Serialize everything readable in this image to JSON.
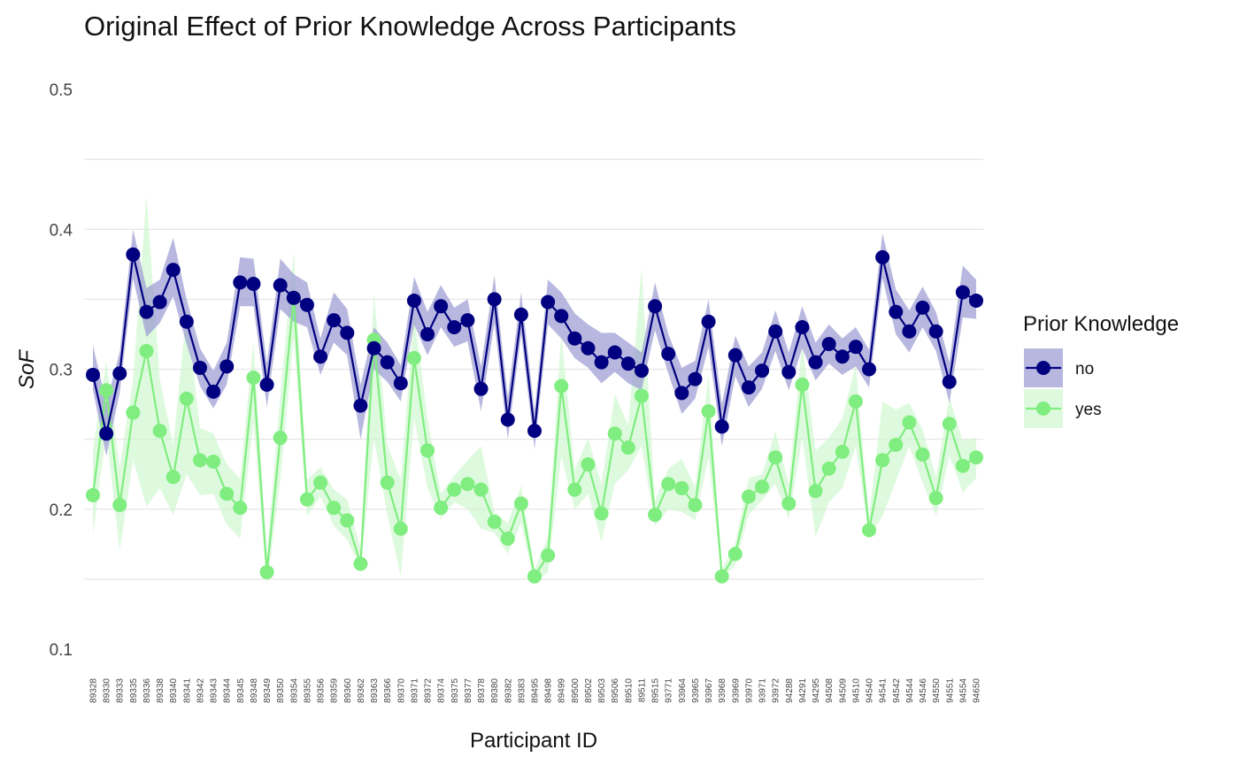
{
  "chart_data": {
    "type": "line",
    "title": "Original Effect of Prior Knowledge Across Participants",
    "xlabel": "Participant ID",
    "ylabel": "SoF",
    "ylim": [
      0.1,
      0.5
    ],
    "yticks": [
      "0.1",
      "0.2",
      "0.3",
      "0.4",
      "0.5"
    ],
    "grid": true,
    "legend": {
      "title": "Prior Knowledge",
      "position": "right"
    },
    "categories": [
      "89328",
      "89330",
      "89333",
      "89335",
      "89336",
      "89338",
      "89340",
      "89341",
      "89342",
      "89343",
      "89344",
      "89345",
      "89348",
      "89349",
      "89350",
      "89354",
      "89355",
      "89356",
      "89359",
      "89360",
      "89362",
      "89363",
      "89366",
      "89370",
      "89371",
      "89372",
      "89374",
      "89375",
      "89377",
      "89378",
      "89380",
      "89382",
      "89383",
      "89495",
      "89498",
      "89499",
      "89500",
      "89502",
      "89503",
      "89506",
      "89510",
      "89511",
      "89515",
      "93771",
      "93964",
      "93965",
      "93967",
      "93968",
      "93969",
      "93970",
      "93971",
      "93972",
      "94288",
      "94291",
      "94295",
      "94508",
      "94509",
      "94510",
      "94540",
      "94541",
      "94542",
      "94544",
      "94546",
      "94550",
      "94551",
      "94554",
      "94650"
    ],
    "series": [
      {
        "name": "no",
        "color": "#000080",
        "band_color": "#9a99d2",
        "values": [
          0.296,
          0.254,
          0.297,
          0.382,
          0.341,
          0.348,
          0.371,
          0.334,
          0.301,
          0.284,
          0.302,
          0.362,
          0.361,
          0.289,
          0.36,
          0.351,
          0.346,
          0.309,
          0.335,
          0.326,
          0.274,
          0.315,
          0.305,
          0.29,
          0.349,
          0.325,
          0.345,
          0.33,
          0.335,
          0.286,
          0.35,
          0.264,
          0.339,
          0.256,
          0.348,
          0.338,
          0.322,
          0.315,
          0.305,
          0.312,
          0.304,
          0.299,
          0.345,
          0.311,
          0.283,
          0.293,
          0.334,
          0.259,
          0.31,
          0.287,
          0.299,
          0.327,
          0.298,
          0.33,
          0.305,
          0.318,
          0.309,
          0.316,
          0.3,
          0.38,
          0.341,
          0.327,
          0.344,
          0.327,
          0.291,
          0.355,
          0.349
        ],
        "lower": [
          0.285,
          0.238,
          0.283,
          0.365,
          0.323,
          0.333,
          0.352,
          0.318,
          0.288,
          0.272,
          0.289,
          0.345,
          0.345,
          0.273,
          0.343,
          0.334,
          0.33,
          0.296,
          0.319,
          0.31,
          0.25,
          0.3,
          0.291,
          0.277,
          0.332,
          0.31,
          0.33,
          0.316,
          0.32,
          0.27,
          0.333,
          0.25,
          0.325,
          0.243,
          0.332,
          0.322,
          0.308,
          0.301,
          0.29,
          0.298,
          0.29,
          0.285,
          0.328,
          0.297,
          0.268,
          0.279,
          0.316,
          0.245,
          0.295,
          0.273,
          0.286,
          0.313,
          0.285,
          0.315,
          0.292,
          0.304,
          0.296,
          0.302,
          0.287,
          0.365,
          0.325,
          0.312,
          0.33,
          0.313,
          0.276,
          0.337,
          0.336
        ],
        "upper": [
          0.317,
          0.276,
          0.312,
          0.4,
          0.358,
          0.364,
          0.394,
          0.35,
          0.315,
          0.299,
          0.319,
          0.38,
          0.379,
          0.304,
          0.379,
          0.368,
          0.362,
          0.322,
          0.355,
          0.343,
          0.289,
          0.33,
          0.319,
          0.303,
          0.366,
          0.341,
          0.36,
          0.344,
          0.35,
          0.302,
          0.367,
          0.28,
          0.355,
          0.27,
          0.364,
          0.355,
          0.34,
          0.332,
          0.326,
          0.326,
          0.319,
          0.312,
          0.362,
          0.325,
          0.301,
          0.306,
          0.35,
          0.275,
          0.324,
          0.302,
          0.312,
          0.342,
          0.312,
          0.345,
          0.319,
          0.332,
          0.322,
          0.33,
          0.314,
          0.397,
          0.357,
          0.342,
          0.359,
          0.341,
          0.305,
          0.374,
          0.364
        ]
      },
      {
        "name": "yes",
        "color": "#7fed7f",
        "band_color": "#cdf7cd",
        "values": [
          0.21,
          0.285,
          0.203,
          0.269,
          0.313,
          0.256,
          0.223,
          0.279,
          0.235,
          0.234,
          0.211,
          0.201,
          0.294,
          0.155,
          0.251,
          0.351,
          0.207,
          0.219,
          0.201,
          0.192,
          0.161,
          0.321,
          0.219,
          0.186,
          0.308,
          0.242,
          0.201,
          0.214,
          0.218,
          0.214,
          0.191,
          0.179,
          0.204,
          0.152,
          0.167,
          0.288,
          0.214,
          0.232,
          0.197,
          0.254,
          0.244,
          0.281,
          0.196,
          0.218,
          0.215,
          0.203,
          0.27,
          0.152,
          0.168,
          0.209,
          0.216,
          0.237,
          0.204,
          0.289,
          0.213,
          0.229,
          0.241,
          0.277,
          0.185,
          0.235,
          0.246,
          0.262,
          0.239,
          0.208,
          0.261,
          0.231,
          0.237
        ],
        "lower": [
          0.182,
          0.255,
          0.17,
          0.235,
          0.202,
          0.215,
          0.196,
          0.225,
          0.21,
          0.211,
          0.189,
          0.179,
          0.263,
          0.145,
          0.22,
          0.323,
          0.195,
          0.209,
          0.188,
          0.178,
          0.158,
          0.25,
          0.196,
          0.152,
          0.265,
          0.215,
          0.193,
          0.205,
          0.2,
          0.186,
          0.183,
          0.168,
          0.19,
          0.147,
          0.155,
          0.238,
          0.2,
          0.211,
          0.177,
          0.218,
          0.228,
          0.245,
          0.188,
          0.2,
          0.198,
          0.192,
          0.237,
          0.15,
          0.16,
          0.196,
          0.206,
          0.218,
          0.193,
          0.251,
          0.18,
          0.205,
          0.215,
          0.245,
          0.18,
          0.195,
          0.22,
          0.245,
          0.219,
          0.195,
          0.238,
          0.212,
          0.222
        ],
        "upper": [
          0.242,
          0.306,
          0.23,
          0.293,
          0.424,
          0.293,
          0.246,
          0.342,
          0.258,
          0.254,
          0.232,
          0.222,
          0.32,
          0.167,
          0.282,
          0.383,
          0.221,
          0.23,
          0.214,
          0.207,
          0.172,
          0.354,
          0.246,
          0.221,
          0.339,
          0.265,
          0.211,
          0.224,
          0.235,
          0.245,
          0.198,
          0.19,
          0.217,
          0.157,
          0.18,
          0.326,
          0.228,
          0.251,
          0.218,
          0.282,
          0.26,
          0.373,
          0.206,
          0.229,
          0.236,
          0.216,
          0.296,
          0.157,
          0.176,
          0.222,
          0.225,
          0.256,
          0.218,
          0.319,
          0.242,
          0.251,
          0.265,
          0.303,
          0.195,
          0.277,
          0.271,
          0.276,
          0.257,
          0.223,
          0.28,
          0.249,
          0.251
        ]
      }
    ]
  }
}
